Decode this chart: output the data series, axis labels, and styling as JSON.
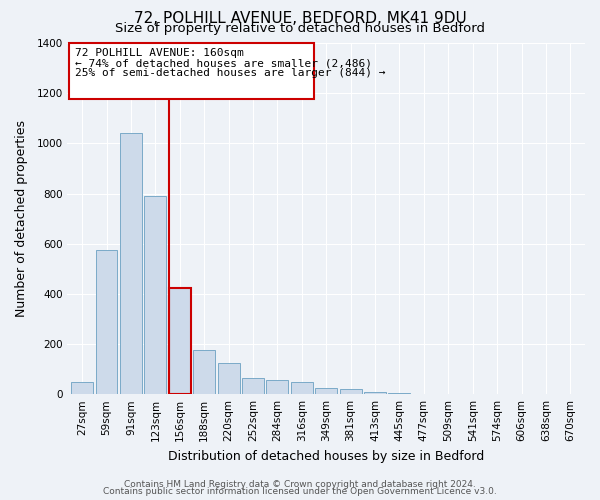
{
  "title": "72, POLHILL AVENUE, BEDFORD, MK41 9DU",
  "subtitle": "Size of property relative to detached houses in Bedford",
  "xlabel": "Distribution of detached houses by size in Bedford",
  "ylabel": "Number of detached properties",
  "bar_labels": [
    "27sqm",
    "59sqm",
    "91sqm",
    "123sqm",
    "156sqm",
    "188sqm",
    "220sqm",
    "252sqm",
    "284sqm",
    "316sqm",
    "349sqm",
    "381sqm",
    "413sqm",
    "445sqm",
    "477sqm",
    "509sqm",
    "541sqm",
    "574sqm",
    "606sqm",
    "638sqm",
    "670sqm"
  ],
  "bar_values": [
    50,
    575,
    1040,
    790,
    425,
    178,
    125,
    65,
    55,
    48,
    25,
    20,
    10,
    5,
    2,
    0,
    0,
    0,
    0,
    0,
    0
  ],
  "bar_color": "#cddaea",
  "bar_edge_color": "#7aaac8",
  "highlight_bar_index": 4,
  "highlight_bar_edge_color": "#cc0000",
  "vline_color": "#cc0000",
  "ylim": [
    0,
    1400
  ],
  "yticks": [
    0,
    200,
    400,
    600,
    800,
    1000,
    1200,
    1400
  ],
  "annotation_text_line1": "72 POLHILL AVENUE: 160sqm",
  "annotation_text_line2": "← 74% of detached houses are smaller (2,486)",
  "annotation_text_line3": "25% of semi-detached houses are larger (844) →",
  "footer_line1": "Contains HM Land Registry data © Crown copyright and database right 2024.",
  "footer_line2": "Contains public sector information licensed under the Open Government Licence v3.0.",
  "bg_color": "#eef2f7",
  "plot_bg_color": "#eef2f7",
  "grid_color": "#ffffff",
  "title_fontsize": 11,
  "subtitle_fontsize": 9.5,
  "axis_label_fontsize": 9,
  "tick_fontsize": 7.5,
  "annotation_fontsize": 8,
  "footer_fontsize": 6.5
}
